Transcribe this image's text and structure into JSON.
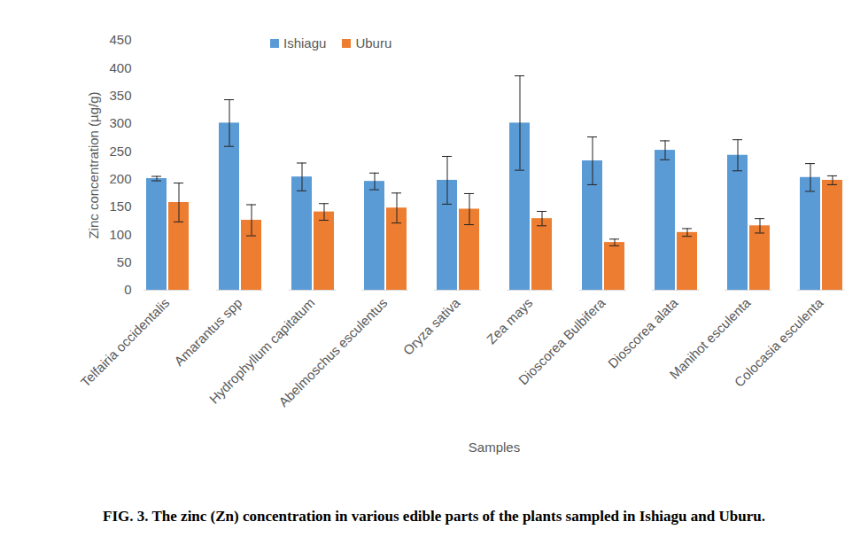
{
  "chart_data": {
    "type": "bar",
    "title": "FIG. 3. The zinc (Zn) concentration in various edible parts of the plants sampled in Ishiagu and Uburu.",
    "x_label": "Samples",
    "y_label": "Zinc concentration (µg/g)",
    "categories": [
      "Telfairia occidentalis",
      "Amarantus spp",
      "Hydrophyllum capitatum",
      "Abelmoschus esculentus",
      "Oryza sativa",
      "Zea mays",
      "Dioscorea Bulbifera",
      "Dioscorea alata",
      "Manihot esculenta",
      "Colocasia esculenta"
    ],
    "series": [
      {
        "name": "Ishiagu",
        "color": "#5b9bd5",
        "values": [
          201,
          301,
          204,
          196,
          198,
          301,
          233,
          252,
          243,
          203
        ],
        "error": [
          4,
          42,
          25,
          15,
          43,
          85,
          43,
          17,
          28,
          25
        ]
      },
      {
        "name": "Uburu",
        "color": "#ed7d31",
        "values": [
          158,
          126,
          141,
          148,
          146,
          129,
          86,
          104,
          116,
          198
        ],
        "error": [
          35,
          28,
          15,
          27,
          28,
          13,
          6,
          7,
          13,
          8
        ]
      }
    ],
    "ylim": [
      0,
      450
    ],
    "yticks": [
      0,
      50,
      100,
      150,
      200,
      250,
      300,
      350,
      400,
      450
    ],
    "grid": false,
    "legend": "top"
  }
}
